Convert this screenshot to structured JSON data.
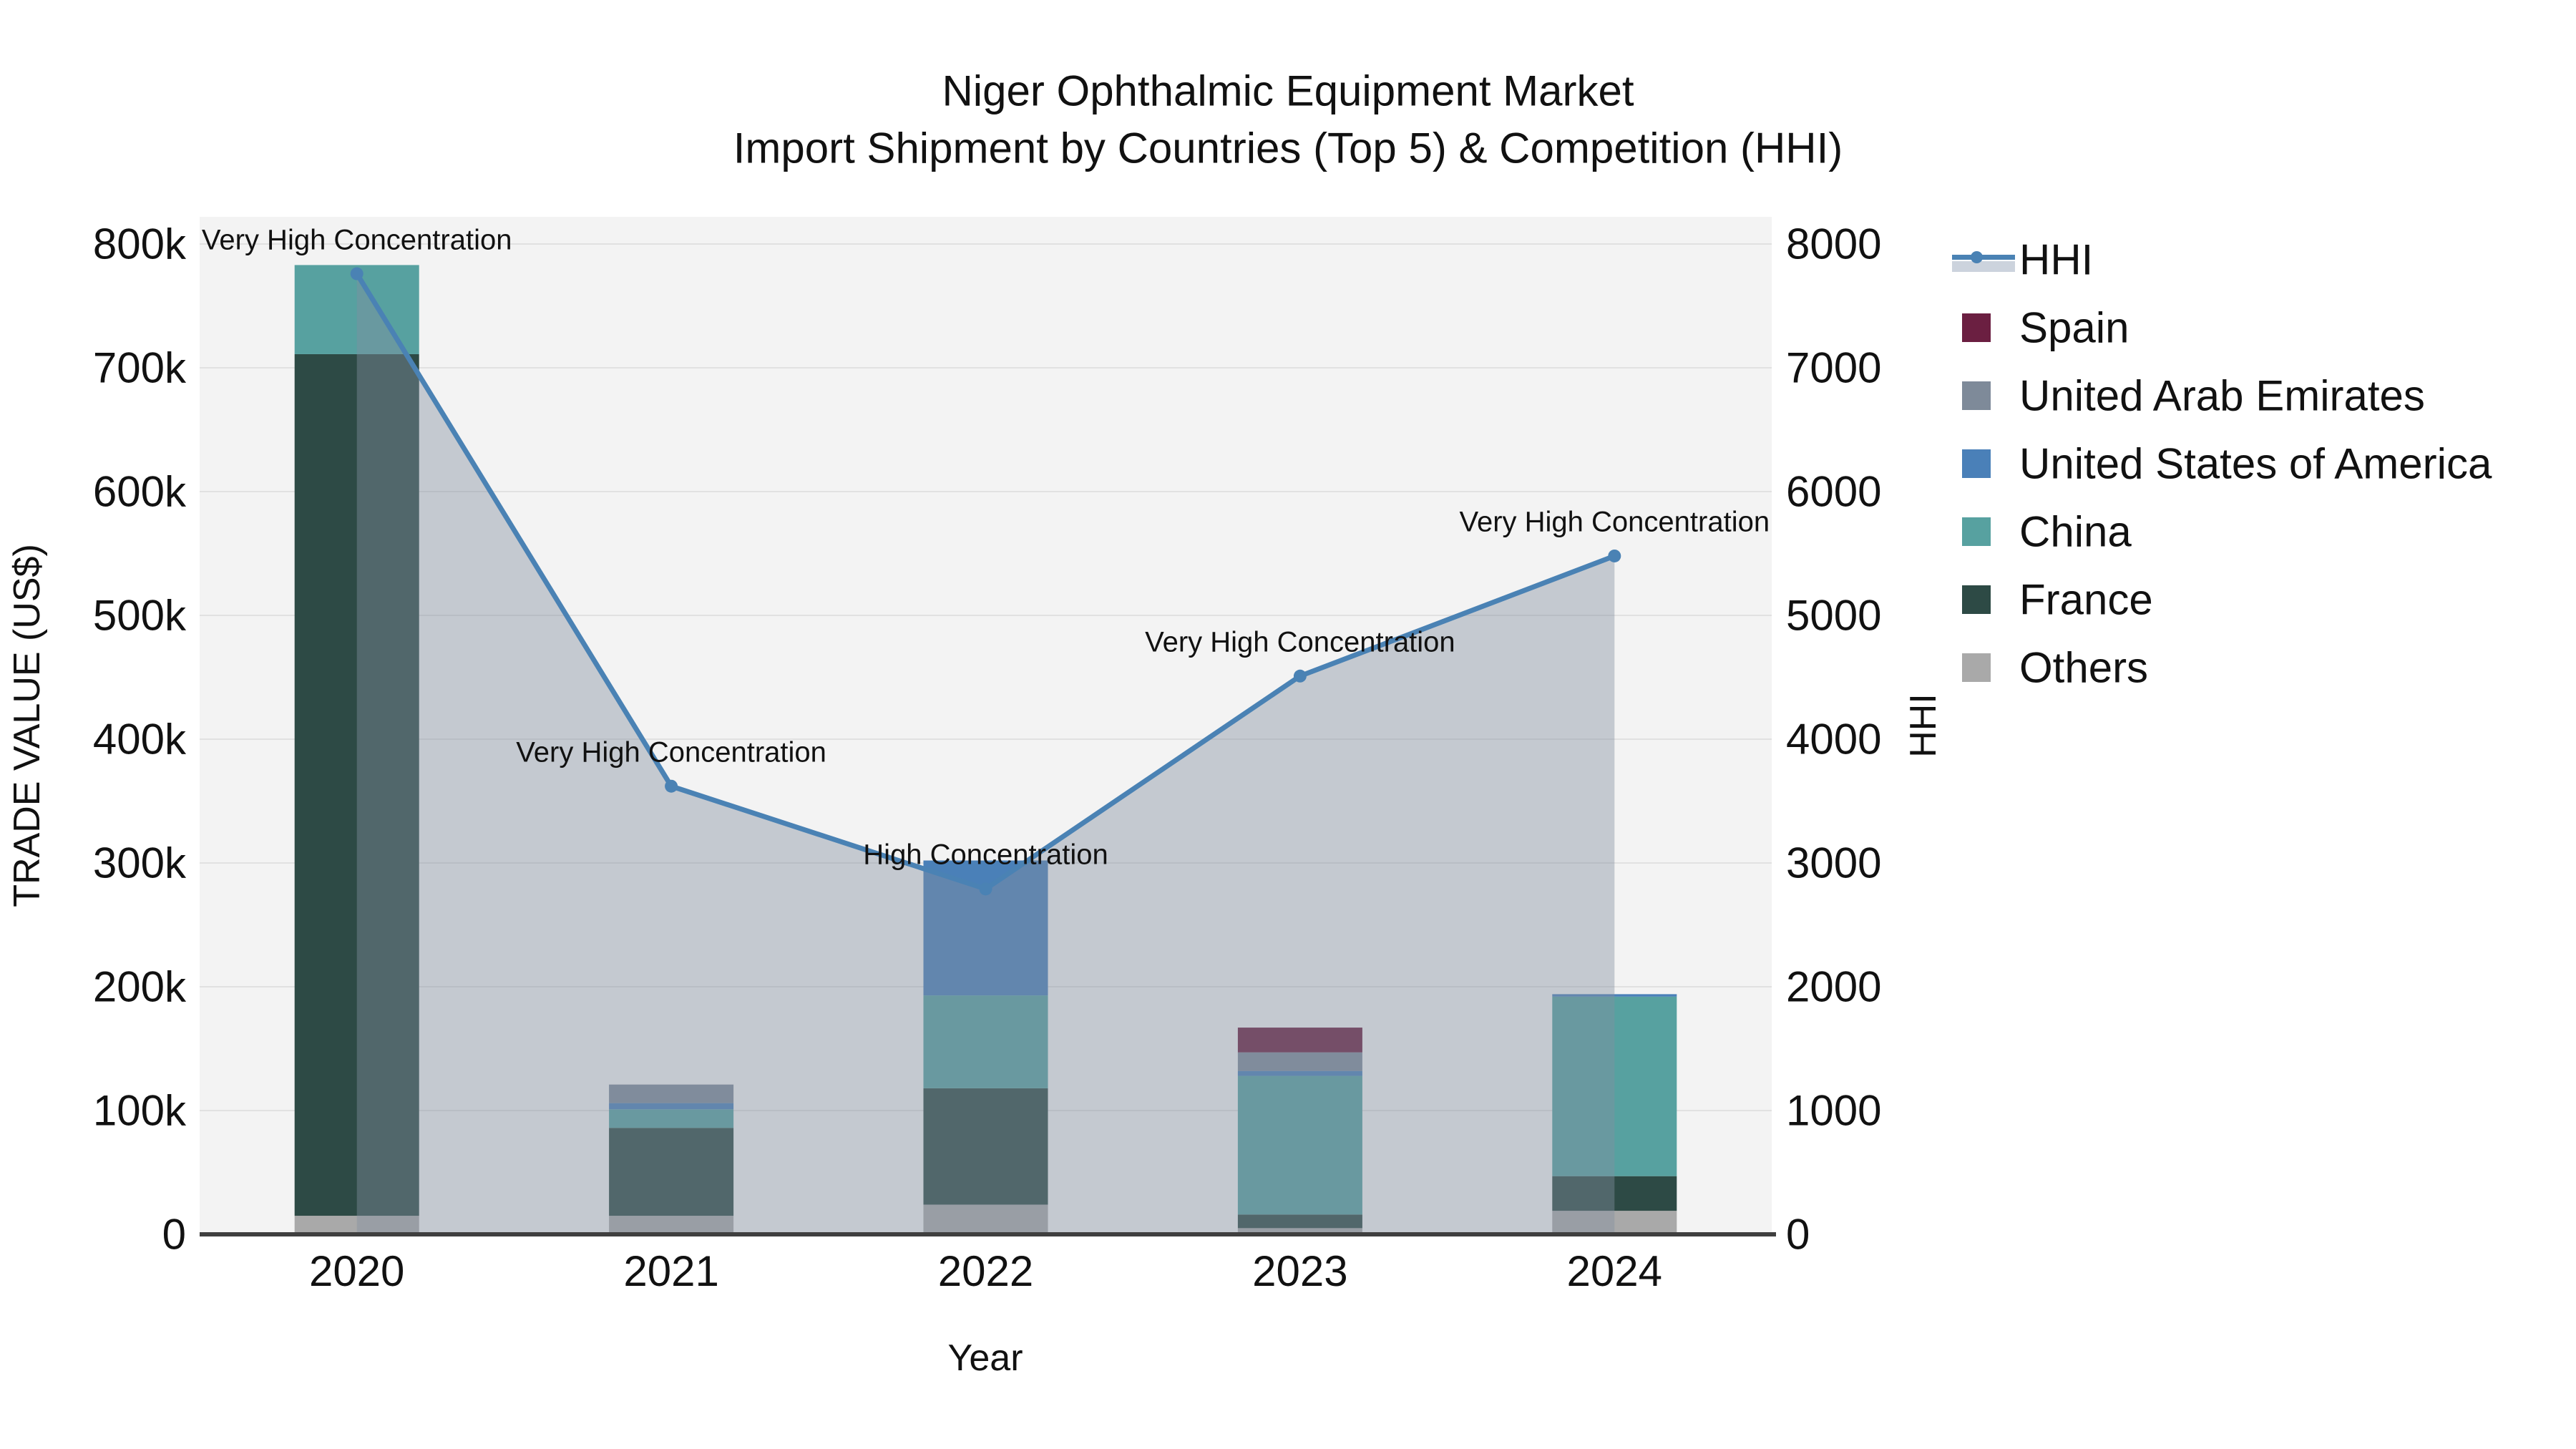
{
  "title": {
    "line1": "Niger Ophthalmic Equipment Market",
    "line2": "Import Shipment by Countries (Top 5) & Competition (HHI)"
  },
  "colors": {
    "plot_background": "#f3f3f3",
    "gridline": "#e1e1e1",
    "axis_line": "#3f3f3f",
    "hhi_line": "#4a82b4",
    "hhi_fill": "rgba(130,142,160,0.42)",
    "text": "#111111"
  },
  "legend": {
    "items": [
      {
        "label": "HHI",
        "type": "line",
        "color": "#4a82b4"
      },
      {
        "label": "Spain",
        "type": "swatch",
        "color": "#6b1f41"
      },
      {
        "label": "United Arab Emirates",
        "type": "swatch",
        "color": "#7e8a99"
      },
      {
        "label": "United States of America",
        "type": "swatch",
        "color": "#4a80b8"
      },
      {
        "label": "China",
        "type": "swatch",
        "color": "#57a1a0"
      },
      {
        "label": "France",
        "type": "swatch",
        "color": "#2d4a45"
      },
      {
        "label": "Others",
        "type": "swatch",
        "color": "#a9a9a9"
      }
    ]
  },
  "chart_data": {
    "type": "bar",
    "subtype": "stacked-bars-with-line",
    "x": [
      "2020",
      "2021",
      "2022",
      "2023",
      "2024"
    ],
    "xlabel": "Year",
    "ylabel_left": "TRADE VALUE (US$)",
    "ylabel_right": "HHI",
    "ylim_left": [
      0,
      800000
    ],
    "ylim_right": [
      0,
      8000
    ],
    "yticks_left": [
      "0",
      "100k",
      "200k",
      "300k",
      "400k",
      "500k",
      "600k",
      "700k",
      "800k"
    ],
    "yticks_right": [
      "0",
      "1000",
      "2000",
      "3000",
      "4000",
      "5000",
      "6000",
      "7000",
      "8000"
    ],
    "grid": true,
    "legend_position": "right",
    "stack_order_bottom_to_top": [
      "Others",
      "France",
      "China",
      "United States of America",
      "United Arab Emirates",
      "Spain"
    ],
    "series": [
      {
        "name": "Spain",
        "color": "#6b1f41",
        "values": [
          0,
          0,
          0,
          20000,
          0
        ]
      },
      {
        "name": "United Arab Emirates",
        "color": "#7e8a99",
        "values": [
          0,
          15000,
          0,
          15000,
          0
        ]
      },
      {
        "name": "United States of America",
        "color": "#4a80b8",
        "values": [
          0,
          5000,
          109000,
          4000,
          2000
        ]
      },
      {
        "name": "China",
        "color": "#57a1a0",
        "values": [
          72000,
          15000,
          75000,
          112000,
          145000
        ]
      },
      {
        "name": "France",
        "color": "#2d4a45",
        "values": [
          696000,
          71000,
          94000,
          11000,
          28000
        ]
      },
      {
        "name": "Others",
        "color": "#a9a9a9",
        "values": [
          15000,
          15000,
          24000,
          5000,
          19000
        ]
      }
    ],
    "bar_totals": [
      783000,
      121000,
      302000,
      167000,
      194000
    ],
    "line_series": {
      "name": "HHI",
      "color": "#4a82b4",
      "axis": "right",
      "values": [
        7760,
        3620,
        2790,
        4510,
        5480
      ]
    },
    "annotations": [
      {
        "x": "2020",
        "text": "Very High Concentration"
      },
      {
        "x": "2021",
        "text": "Very High Concentration"
      },
      {
        "x": "2022",
        "text": "High Concentration"
      },
      {
        "x": "2023",
        "text": "Very High Concentration"
      },
      {
        "x": "2024",
        "text": "Very High Concentration"
      }
    ]
  }
}
